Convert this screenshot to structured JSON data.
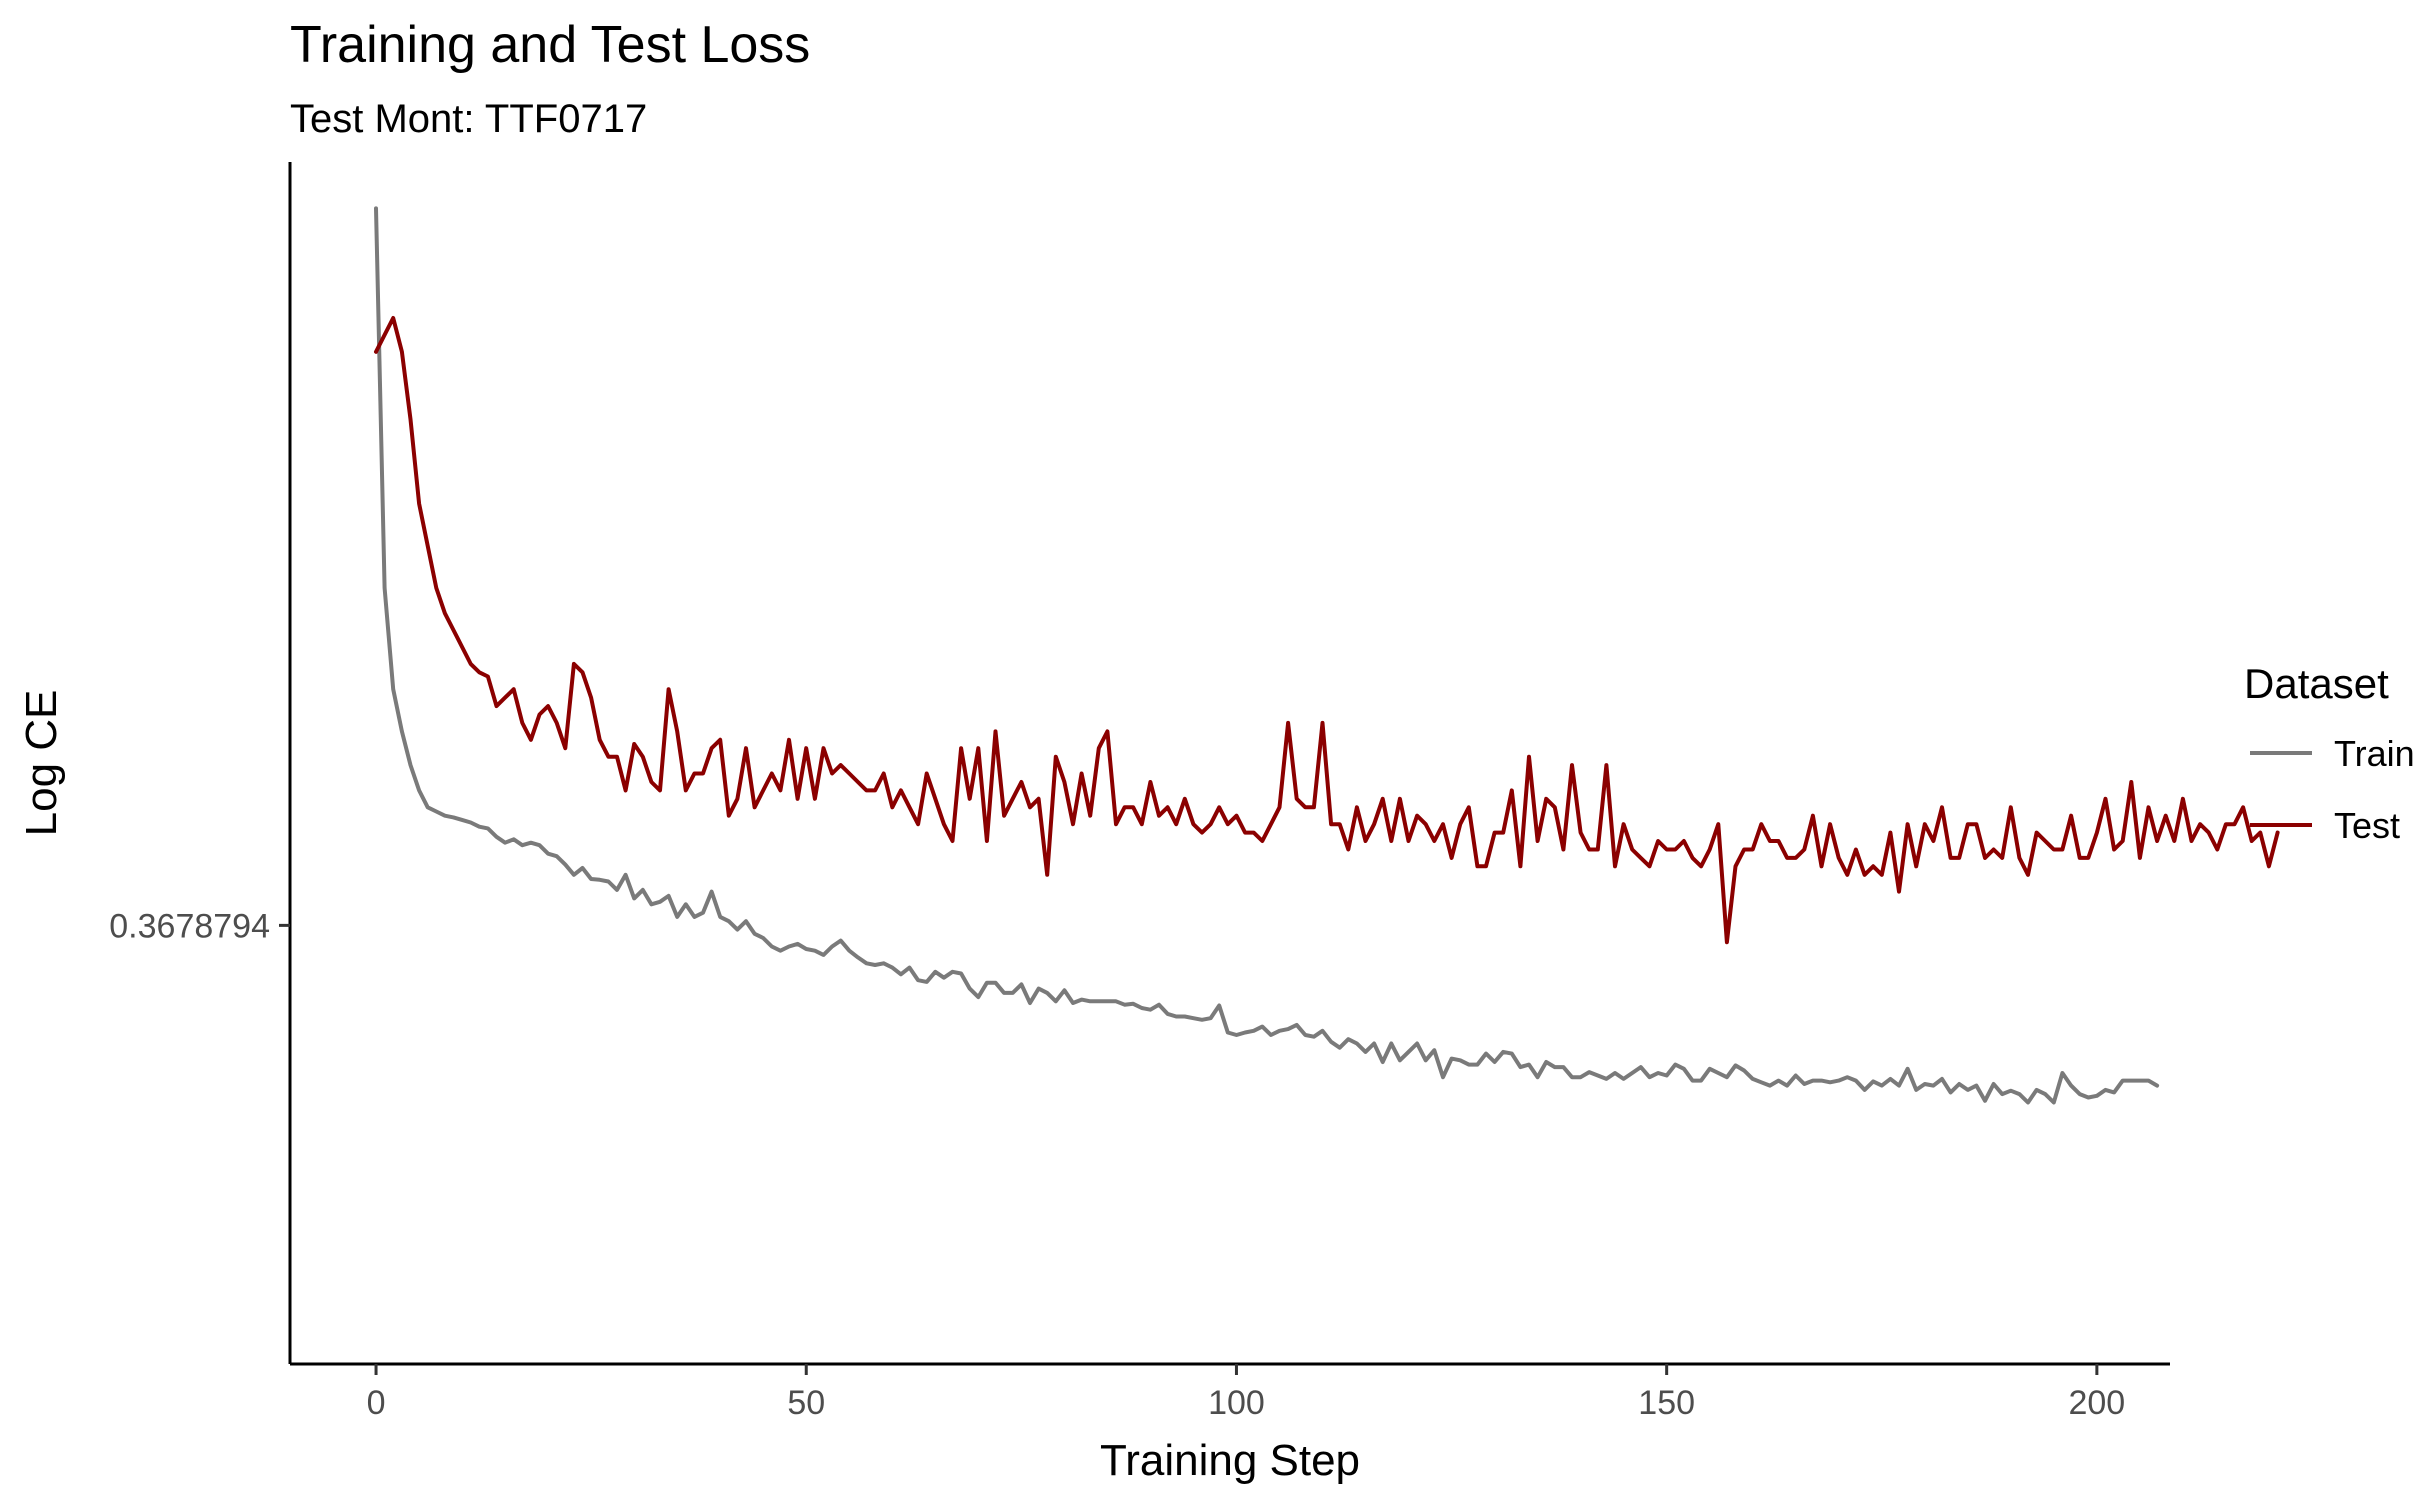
{
  "chart_data": {
    "type": "line",
    "title": "Training and Test Loss",
    "subtitle": "Test Mont: TTF0717",
    "xlabel": "Training Step",
    "ylabel": "Log CE",
    "xlim": [
      -10,
      208.5
    ],
    "ylim": [
      -1.52,
      -0.095
    ],
    "x_ticks": [
      0,
      50,
      100,
      150,
      200
    ],
    "y_ticks": [
      {
        "value": -1,
        "label": "0.3678794"
      }
    ],
    "grid": false,
    "legend": {
      "title": "Dataset",
      "position": "right"
    },
    "series": [
      {
        "name": "Train",
        "color": "#7a7a7a",
        "x_start": 0,
        "x_step": 1,
        "values": [
          -0.15,
          -0.6,
          -0.72,
          -0.77,
          -0.81,
          -0.84,
          -0.86,
          -0.865,
          -0.87,
          -0.872,
          -0.875,
          -0.878,
          -0.883,
          -0.885,
          -0.895,
          -0.902,
          -0.898,
          -0.905,
          -0.902,
          -0.905,
          -0.915,
          -0.918,
          -0.928,
          -0.94,
          -0.932,
          -0.945,
          -0.946,
          -0.948,
          -0.958,
          -0.94,
          -0.968,
          -0.958,
          -0.975,
          -0.972,
          -0.965,
          -0.99,
          -0.975,
          -0.99,
          -0.985,
          -0.96,
          -0.99,
          -0.995,
          -1.005,
          -0.995,
          -1.01,
          -1.015,
          -1.025,
          -1.03,
          -1.025,
          -1.022,
          -1.028,
          -1.03,
          -1.035,
          -1.025,
          -1.018,
          -1.03,
          -1.038,
          -1.045,
          -1.047,
          -1.045,
          -1.05,
          -1.058,
          -1.05,
          -1.065,
          -1.067,
          -1.055,
          -1.062,
          -1.055,
          -1.057,
          -1.075,
          -1.085,
          -1.068,
          -1.068,
          -1.08,
          -1.08,
          -1.07,
          -1.092,
          -1.075,
          -1.08,
          -1.09,
          -1.077,
          -1.092,
          -1.088,
          -1.09,
          -1.09,
          -1.09,
          -1.09,
          -1.094,
          -1.093,
          -1.098,
          -1.1,
          -1.094,
          -1.105,
          -1.108,
          -1.108,
          -1.11,
          -1.112,
          -1.11,
          -1.095,
          -1.127,
          -1.13,
          -1.127,
          -1.125,
          -1.12,
          -1.13,
          -1.125,
          -1.123,
          -1.118,
          -1.13,
          -1.132,
          -1.125,
          -1.138,
          -1.145,
          -1.135,
          -1.14,
          -1.15,
          -1.14,
          -1.162,
          -1.14,
          -1.16,
          -1.15,
          -1.14,
          -1.16,
          -1.148,
          -1.18,
          -1.158,
          -1.16,
          -1.165,
          -1.165,
          -1.152,
          -1.162,
          -1.15,
          -1.152,
          -1.168,
          -1.165,
          -1.18,
          -1.162,
          -1.168,
          -1.168,
          -1.18,
          -1.18,
          -1.174,
          -1.178,
          -1.182,
          -1.175,
          -1.182,
          -1.175,
          -1.168,
          -1.18,
          -1.175,
          -1.178,
          -1.165,
          -1.17,
          -1.184,
          -1.184,
          -1.17,
          -1.175,
          -1.18,
          -1.166,
          -1.172,
          -1.182,
          -1.186,
          -1.19,
          -1.184,
          -1.19,
          -1.178,
          -1.188,
          -1.184,
          -1.184,
          -1.186,
          -1.184,
          -1.18,
          -1.184,
          -1.195,
          -1.185,
          -1.19,
          -1.182,
          -1.19,
          -1.17,
          -1.195,
          -1.188,
          -1.19,
          -1.182,
          -1.198,
          -1.188,
          -1.195,
          -1.19,
          -1.208,
          -1.188,
          -1.2,
          -1.196,
          -1.2,
          -1.21,
          -1.195,
          -1.2,
          -1.21,
          -1.175,
          -1.19,
          -1.2,
          -1.204,
          -1.202,
          -1.195,
          -1.198,
          -1.184,
          -1.184,
          -1.184,
          -1.184,
          -1.19
        ]
      },
      {
        "name": "Test",
        "color": "#8b0000",
        "x_start": 0,
        "x_step": 1,
        "values": [
          -0.32,
          -0.3,
          -0.28,
          -0.32,
          -0.4,
          -0.5,
          -0.55,
          -0.6,
          -0.63,
          -0.65,
          -0.67,
          -0.69,
          -0.7,
          -0.705,
          -0.74,
          -0.73,
          -0.72,
          -0.76,
          -0.78,
          -0.75,
          -0.74,
          -0.76,
          -0.79,
          -0.69,
          -0.7,
          -0.73,
          -0.78,
          -0.8,
          -0.8,
          -0.84,
          -0.785,
          -0.8,
          -0.83,
          -0.84,
          -0.72,
          -0.77,
          -0.84,
          -0.82,
          -0.82,
          -0.79,
          -0.78,
          -0.87,
          -0.85,
          -0.79,
          -0.86,
          -0.84,
          -0.82,
          -0.84,
          -0.78,
          -0.85,
          -0.79,
          -0.85,
          -0.79,
          -0.82,
          -0.81,
          -0.82,
          -0.83,
          -0.84,
          -0.84,
          -0.82,
          -0.86,
          -0.84,
          -0.86,
          -0.88,
          -0.82,
          -0.85,
          -0.88,
          -0.9,
          -0.79,
          -0.85,
          -0.79,
          -0.9,
          -0.77,
          -0.87,
          -0.85,
          -0.83,
          -0.86,
          -0.85,
          -0.94,
          -0.8,
          -0.83,
          -0.88,
          -0.82,
          -0.87,
          -0.79,
          -0.77,
          -0.88,
          -0.86,
          -0.86,
          -0.88,
          -0.83,
          -0.87,
          -0.86,
          -0.88,
          -0.85,
          -0.88,
          -0.89,
          -0.88,
          -0.86,
          -0.88,
          -0.87,
          -0.89,
          -0.89,
          -0.9,
          -0.88,
          -0.86,
          -0.76,
          -0.85,
          -0.86,
          -0.86,
          -0.76,
          -0.88,
          -0.88,
          -0.91,
          -0.86,
          -0.9,
          -0.88,
          -0.85,
          -0.9,
          -0.85,
          -0.9,
          -0.87,
          -0.88,
          -0.9,
          -0.88,
          -0.92,
          -0.88,
          -0.86,
          -0.93,
          -0.93,
          -0.89,
          -0.89,
          -0.84,
          -0.93,
          -0.8,
          -0.9,
          -0.85,
          -0.86,
          -0.91,
          -0.81,
          -0.89,
          -0.91,
          -0.91,
          -0.81,
          -0.93,
          -0.88,
          -0.91,
          -0.92,
          -0.93,
          -0.9,
          -0.91,
          -0.91,
          -0.9,
          -0.92,
          -0.93,
          -0.91,
          -0.88,
          -1.02,
          -0.93,
          -0.91,
          -0.91,
          -0.88,
          -0.9,
          -0.9,
          -0.92,
          -0.92,
          -0.91,
          -0.87,
          -0.93,
          -0.88,
          -0.92,
          -0.94,
          -0.91,
          -0.94,
          -0.93,
          -0.94,
          -0.89,
          -0.96,
          -0.88,
          -0.93,
          -0.88,
          -0.9,
          -0.86,
          -0.92,
          -0.92,
          -0.88,
          -0.88,
          -0.92,
          -0.91,
          -0.92,
          -0.86,
          -0.92,
          -0.94,
          -0.89,
          -0.9,
          -0.91,
          -0.91,
          -0.87,
          -0.92,
          -0.92,
          -0.89,
          -0.85,
          -0.91,
          -0.9,
          -0.83,
          -0.92,
          -0.86,
          -0.9,
          -0.87,
          -0.9,
          -0.85,
          -0.9,
          -0.88,
          -0.89,
          -0.91,
          -0.88,
          -0.88,
          -0.86,
          -0.9,
          -0.89,
          -0.93,
          -0.89
        ]
      }
    ]
  }
}
